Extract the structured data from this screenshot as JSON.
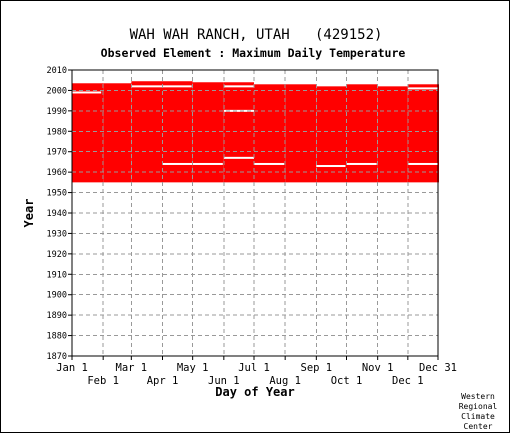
{
  "chart_data": {
    "type": "heatmap",
    "title": "WAH WAH RANCH, UTAH   (429152)",
    "subtitle": "Observed Element : Maximum Daily Temperature",
    "xlabel": "Day of Year",
    "ylabel": "Year",
    "ylim": [
      1870,
      2010
    ],
    "yticks": [
      1870,
      1880,
      1890,
      1900,
      1910,
      1920,
      1930,
      1940,
      1950,
      1960,
      1970,
      1980,
      1990,
      2000,
      2010
    ],
    "xticks_upper": [
      {
        "label": "Jan 1",
        "day": 1
      },
      {
        "label": "Mar 1",
        "day": 60
      },
      {
        "label": "May 1",
        "day": 121
      },
      {
        "label": "Jul 1",
        "day": 182
      },
      {
        "label": "Sep 1",
        "day": 244
      },
      {
        "label": "Nov 1",
        "day": 305
      },
      {
        "label": "Dec 31",
        "day": 365
      }
    ],
    "xticks_lower": [
      {
        "label": "Feb 1",
        "day": 32
      },
      {
        "label": "Apr 1",
        "day": 91
      },
      {
        "label": "Jun 1",
        "day": 152
      },
      {
        "label": "Aug 1",
        "day": 213
      },
      {
        "label": "Oct 1",
        "day": 274
      },
      {
        "label": "Dec 1",
        "day": 335
      }
    ],
    "grid": true,
    "data_color": "#ff0000",
    "record": {
      "start_year": 1955,
      "monthly_end_years": [
        2003.5,
        2003.5,
        2004.5,
        2004.5,
        2004,
        2004,
        2003,
        2003,
        2002,
        2003,
        2002,
        2003
      ]
    },
    "missing_periods": [
      {
        "day_start": 1,
        "day_end": 30,
        "year": 1999
      },
      {
        "day_start": 60,
        "day_end": 120,
        "year": 2002
      },
      {
        "day_start": 152,
        "day_end": 182,
        "year": 2002
      },
      {
        "day_start": 152,
        "day_end": 182,
        "year": 1990
      },
      {
        "day_start": 152,
        "day_end": 182,
        "year": 1967
      },
      {
        "day_start": 91,
        "day_end": 151,
        "year": 1964
      },
      {
        "day_start": 182,
        "day_end": 212,
        "year": 1964
      },
      {
        "day_start": 244,
        "day_end": 273,
        "year": 1963
      },
      {
        "day_start": 274,
        "day_end": 304,
        "year": 1964
      },
      {
        "day_start": 335,
        "day_end": 365,
        "year": 1964
      },
      {
        "day_start": 335,
        "day_end": 365,
        "year": 2001
      }
    ]
  },
  "credit": [
    "Western",
    "Regional",
    "Climate",
    "Center"
  ]
}
